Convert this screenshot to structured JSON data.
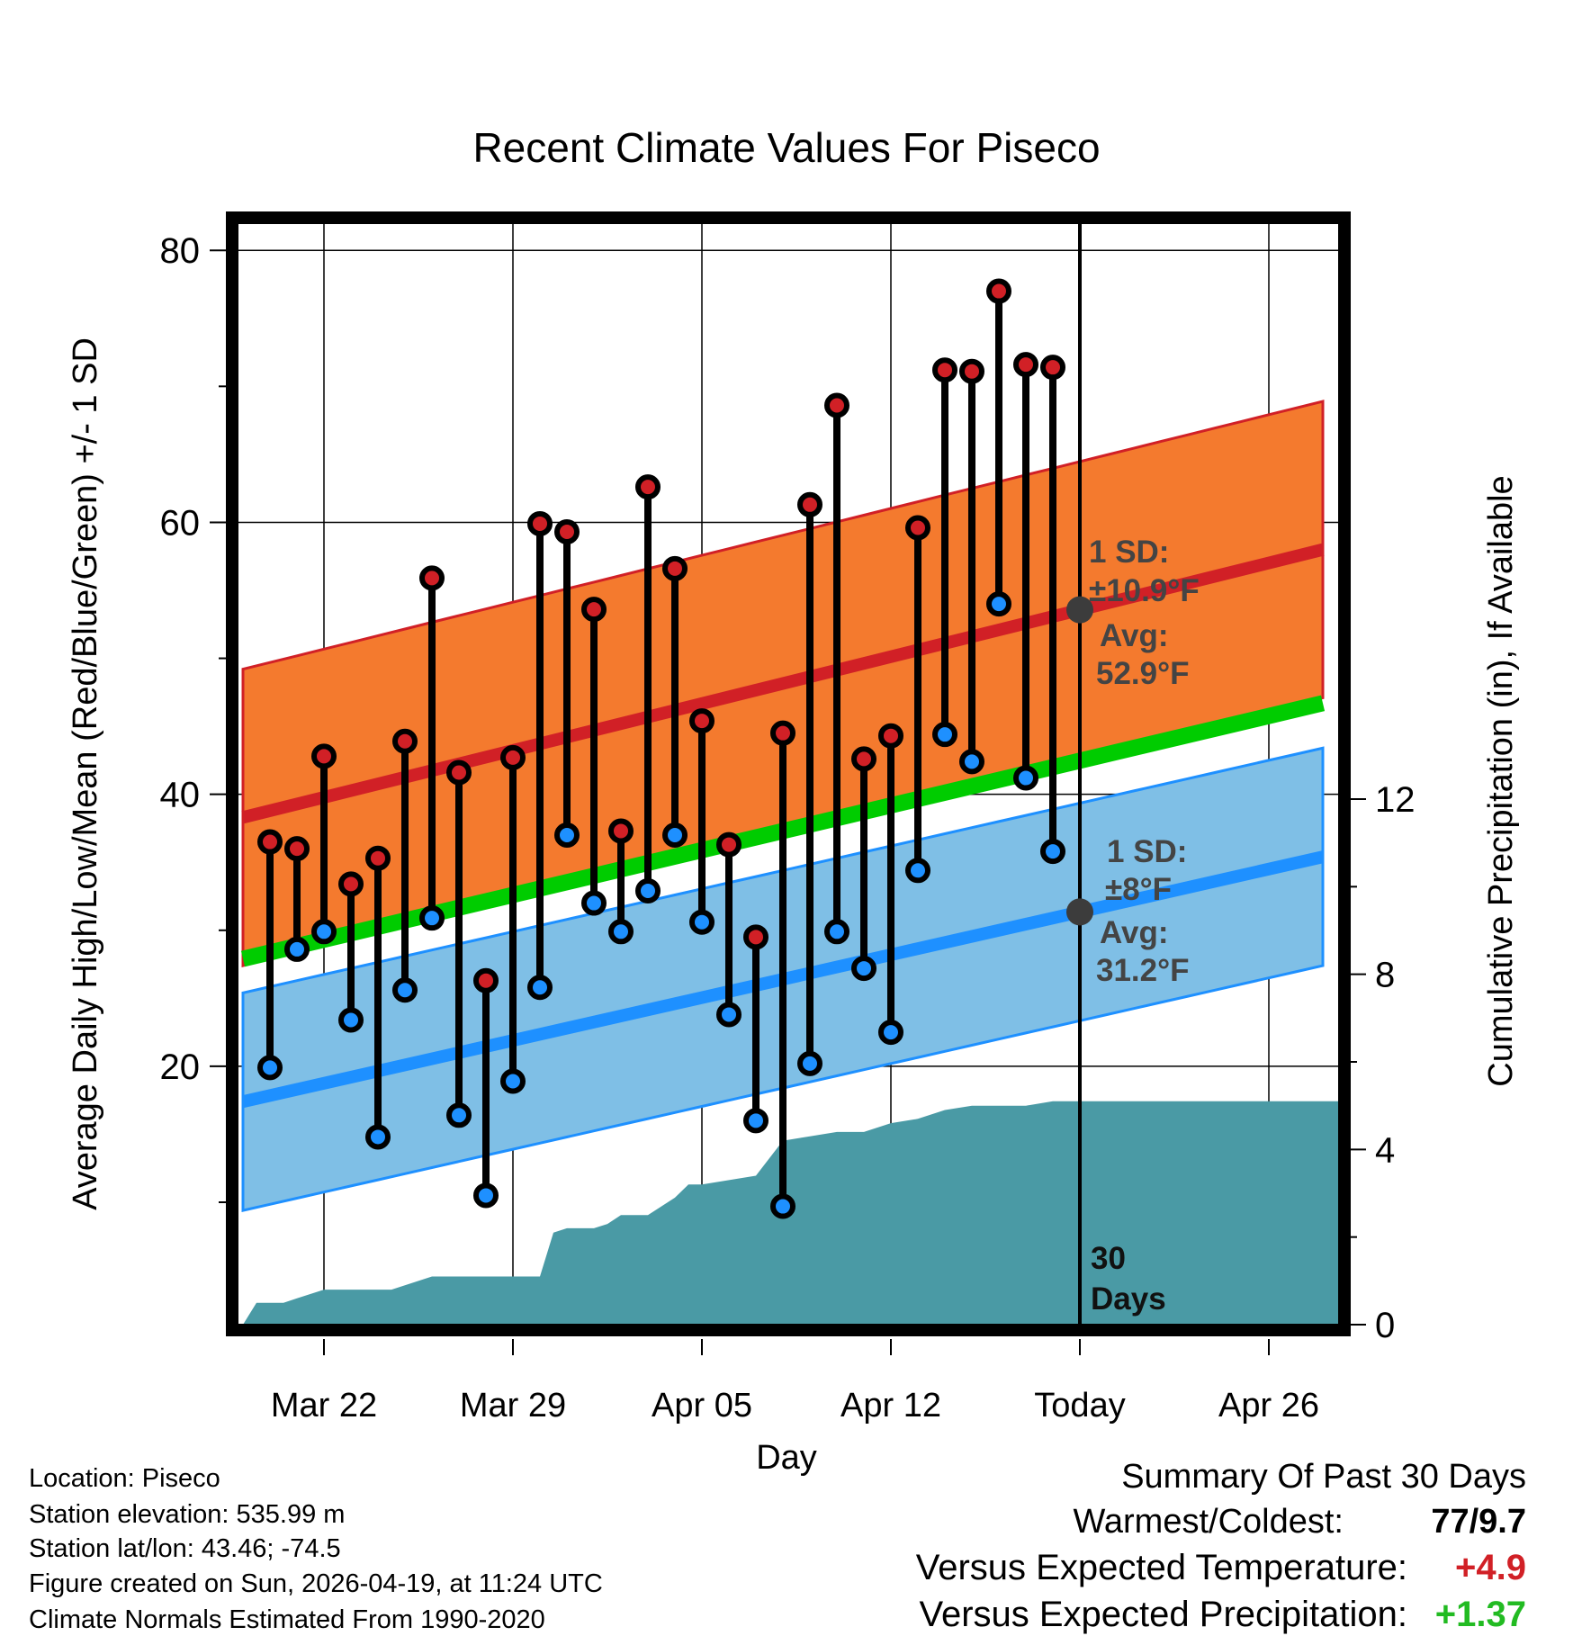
{
  "chart_data": {
    "type": "line",
    "title": "Recent Climate Values For Piseco",
    "xlabel": "Day",
    "ylabel_left": "Average Daily High/Low/Mean (Red/Blue/Green) +/- 1 SD",
    "ylabel_right": "Cumulative Precipitation (in), If Available",
    "x_ticks": [
      {
        "day": 3,
        "label": "Mar 22"
      },
      {
        "day": 10,
        "label": "Mar 29"
      },
      {
        "day": 17,
        "label": "Apr 05"
      },
      {
        "day": 24,
        "label": "Apr 12"
      },
      {
        "day": 31,
        "label": "Today"
      },
      {
        "day": 38,
        "label": "Apr 26"
      }
    ],
    "x_range": [
      0,
      41
    ],
    "y_left_range": [
      1,
      82
    ],
    "y_left_ticks": [
      "20",
      "40",
      "60",
      "80"
    ],
    "y_right_range": [
      0,
      25
    ],
    "y_right_ticks": [
      "0",
      "4",
      "8",
      "12"
    ],
    "days": [
      1,
      2,
      3,
      4,
      5,
      6,
      7,
      8,
      9,
      10,
      11,
      12,
      13,
      14,
      15,
      16,
      17,
      18,
      19,
      20,
      21,
      22,
      23,
      24,
      25,
      26,
      27,
      28,
      29,
      30
    ],
    "highs": [
      36.5,
      36,
      42.8,
      33.4,
      35.3,
      43.9,
      55.9,
      41.6,
      26.3,
      42.7,
      59.9,
      59.3,
      53.6,
      37.3,
      62.6,
      56.6,
      45.4,
      36.3,
      29.5,
      44.5,
      61.3,
      68.6,
      42.6,
      44.3,
      59.6,
      71.2,
      71.1,
      77,
      71.6,
      71.4
    ],
    "lows": [
      19.9,
      28.6,
      29.9,
      23.4,
      14.8,
      25.6,
      30.9,
      16.4,
      10.5,
      18.9,
      25.8,
      37,
      32,
      29.9,
      32.9,
      37,
      30.6,
      23.8,
      16,
      9.7,
      20.2,
      29.9,
      27.2,
      22.5,
      34.4,
      44.4,
      42.4,
      54,
      41.2,
      35.8
    ],
    "normal_high": {
      "day0": 38.3,
      "day40": 58.0,
      "sd": 10.9
    },
    "normal_low": {
      "day0": 17.4,
      "day40": 35.4,
      "sd": 8
    },
    "normal_mean": {
      "day0": 27.9,
      "day40": 46.7
    },
    "precip_cumulative": {
      "days": [
        0,
        0.5,
        1.5,
        2,
        3,
        4,
        5,
        5.5,
        6,
        7,
        8,
        9,
        9.5,
        10,
        11,
        11.5,
        12,
        13,
        13.5,
        14,
        15,
        16,
        16.5,
        17,
        18,
        19,
        20,
        21,
        22,
        23,
        24,
        25,
        26,
        27,
        28,
        29,
        30,
        31,
        35,
        41
      ],
      "values": [
        0,
        0.5,
        0.5,
        0.6,
        0.8,
        0.8,
        0.8,
        0.8,
        0.9,
        1.1,
        1.1,
        1.1,
        1.1,
        1.1,
        1.1,
        2.1,
        2.2,
        2.2,
        2.3,
        2.5,
        2.5,
        2.9,
        3.2,
        3.2,
        3.3,
        3.4,
        4.2,
        4.3,
        4.4,
        4.4,
        4.6,
        4.7,
        4.9,
        5.0,
        5.0,
        5.0,
        5.1,
        5.1,
        5.1,
        5.1
      ]
    },
    "annotations": {
      "high_sd_label": "1 SD:",
      "high_sd_value": "±10.9°F",
      "high_avg_label": "Avg:",
      "high_avg_value": "52.9°F",
      "low_sd_label": "1 SD:",
      "low_sd_value": "±8°F",
      "low_avg_label": "Avg:",
      "low_avg_value": "31.2°F",
      "window_label_1": "30",
      "window_label_2": "Days",
      "today_day": 31
    },
    "colors": {
      "high": "#d12026",
      "low": "#1e90ff",
      "mean": "#00cc00",
      "high_band": "#f47a2e",
      "low_band": "#7fbfe6",
      "precip": "#4a9aa5",
      "marker_grey": "#3c3c3c"
    }
  },
  "metadata": {
    "location": "Location: Piseco",
    "elevation": "Station elevation: 535.99 m",
    "latlon": "Station lat/lon: 43.46; -74.5",
    "created": "Figure created on Sun, 2026-04-19, at 11:24 UTC",
    "normals": "Climate Normals Estimated From 1990-2020"
  },
  "summary": {
    "title": "Summary Of Past 30 Days",
    "warm_cold_label": "Warmest/Coldest:",
    "warm_cold_value": "77/9.7",
    "temp_label": "Versus Expected Temperature:",
    "temp_value": "+4.9",
    "temp_color": "#d12026",
    "precip_label": "Versus Expected Precipitation:",
    "precip_value": "+1.37",
    "precip_color": "#22bb22"
  }
}
